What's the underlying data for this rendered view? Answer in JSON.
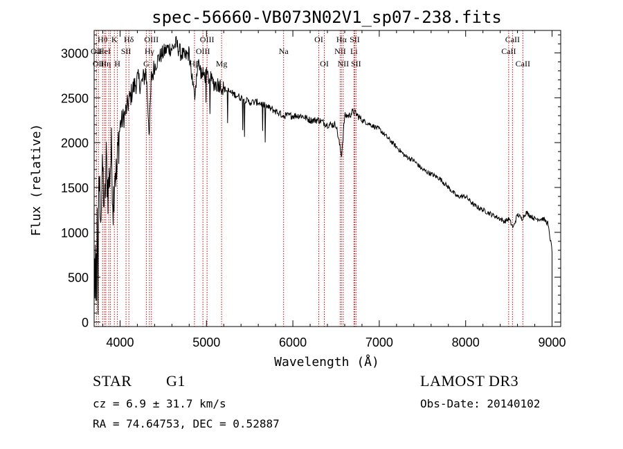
{
  "chart_data": {
    "type": "line",
    "title": "spec-56660-VB073N02V1_sp07-238.fits",
    "xlabel": "Wavelength (Å)",
    "ylabel": "Flux (relative)",
    "xlim": [
      3700,
      9100
    ],
    "ylim": [
      -50,
      3250
    ],
    "xticks": [
      4000,
      5000,
      6000,
      7000,
      8000,
      9000
    ],
    "yticks": [
      0,
      500,
      1000,
      1500,
      2000,
      2500,
      3000
    ],
    "line_color": "#000000",
    "marker_color": "#cc0000",
    "series": [
      {
        "name": "spectrum",
        "x": [
          3700,
          3720,
          3740,
          3760,
          3780,
          3800,
          3820,
          3840,
          3860,
          3880,
          3900,
          3920,
          3940,
          3960,
          3980,
          4000,
          4050,
          4100,
          4150,
          4200,
          4250,
          4300,
          4340,
          4360,
          4400,
          4450,
          4500,
          4550,
          4600,
          4650,
          4700,
          4750,
          4800,
          4861,
          4900,
          4950,
          5000,
          5050,
          5100,
          5150,
          5200,
          5300,
          5400,
          5500,
          5600,
          5700,
          5800,
          5893,
          6000,
          6100,
          6200,
          6300,
          6400,
          6500,
          6563,
          6600,
          6650,
          6700,
          6750,
          6800,
          6900,
          7000,
          7100,
          7200,
          7300,
          7400,
          7500,
          7600,
          7700,
          7800,
          7900,
          8000,
          8100,
          8200,
          8300,
          8400,
          8450,
          8500,
          8550,
          8600,
          8650,
          8700,
          8800,
          8900,
          8950,
          9000
        ],
        "y": [
          250,
          900,
          1100,
          1500,
          1250,
          1700,
          1200,
          1800,
          1450,
          1650,
          1900,
          1300,
          1750,
          1600,
          2000,
          2200,
          2300,
          2450,
          2600,
          2700,
          2650,
          2800,
          2100,
          2700,
          2850,
          2950,
          3000,
          3050,
          3050,
          3100,
          3000,
          2950,
          3000,
          2500,
          2900,
          2750,
          2750,
          2700,
          2650,
          2650,
          2600,
          2550,
          2500,
          2450,
          2450,
          2400,
          2350,
          2300,
          2300,
          2300,
          2250,
          2250,
          2200,
          2200,
          1850,
          2300,
          2300,
          2350,
          2300,
          2250,
          2200,
          2150,
          2050,
          1950,
          1850,
          1800,
          1700,
          1650,
          1600,
          1500,
          1400,
          1400,
          1300,
          1250,
          1200,
          1150,
          1120,
          1150,
          1050,
          1200,
          1150,
          1220,
          1150,
          1150,
          1100,
          800
        ]
      }
    ],
    "line_markers": [
      {
        "w": 3727,
        "label": "OII",
        "row": 2
      },
      {
        "w": 3750,
        "label": "OII",
        "row": 3
      },
      {
        "w": 3798,
        "label": "Hθ",
        "row": 1
      },
      {
        "w": 3820,
        "label": "HeI",
        "row": 2
      },
      {
        "w": 3835,
        "label": "Hη",
        "row": 3
      },
      {
        "w": 3869,
        "label": "",
        "row": 0
      },
      {
        "w": 3889,
        "label": "",
        "row": 0
      },
      {
        "w": 3934,
        "label": "K",
        "row": 1
      },
      {
        "w": 3969,
        "label": "H",
        "row": 3
      },
      {
        "w": 4069,
        "label": "SII",
        "row": 2
      },
      {
        "w": 4102,
        "label": "Hδ",
        "row": 1
      },
      {
        "w": 4304,
        "label": "G",
        "row": 3
      },
      {
        "w": 4340,
        "label": "Hγ",
        "row": 2
      },
      {
        "w": 4363,
        "label": "OIII",
        "row": 1
      },
      {
        "w": 4861,
        "label": "Hβ",
        "row": 3
      },
      {
        "w": 4959,
        "label": "OIII",
        "row": 2
      },
      {
        "w": 5007,
        "label": "OIII",
        "row": 1
      },
      {
        "w": 5175,
        "label": "Mg",
        "row": 3
      },
      {
        "w": 5893,
        "label": "Na",
        "row": 2
      },
      {
        "w": 6300,
        "label": "OI",
        "row": 1
      },
      {
        "w": 6364,
        "label": "OI",
        "row": 3
      },
      {
        "w": 6548,
        "label": "NII",
        "row": 2
      },
      {
        "w": 6563,
        "label": "Hα",
        "row": 1
      },
      {
        "w": 6583,
        "label": "NII",
        "row": 3
      },
      {
        "w": 6707,
        "label": "Li",
        "row": 2
      },
      {
        "w": 6716,
        "label": "SII",
        "row": 1
      },
      {
        "w": 6731,
        "label": "SII",
        "row": 3
      },
      {
        "w": 8498,
        "label": "CaII",
        "row": 2
      },
      {
        "w": 8542,
        "label": "CaII",
        "row": 1
      },
      {
        "w": 8662,
        "label": "CaII",
        "row": 3
      }
    ]
  },
  "info": {
    "object_class": "STAR",
    "subclass": "G1",
    "survey": "LAMOST DR3",
    "cz": "cz = 6.9 ± 31.7 km/s",
    "obs_date": "Obs-Date: 20140102",
    "coords": "RA =  74.64753, DEC =    0.52887"
  }
}
